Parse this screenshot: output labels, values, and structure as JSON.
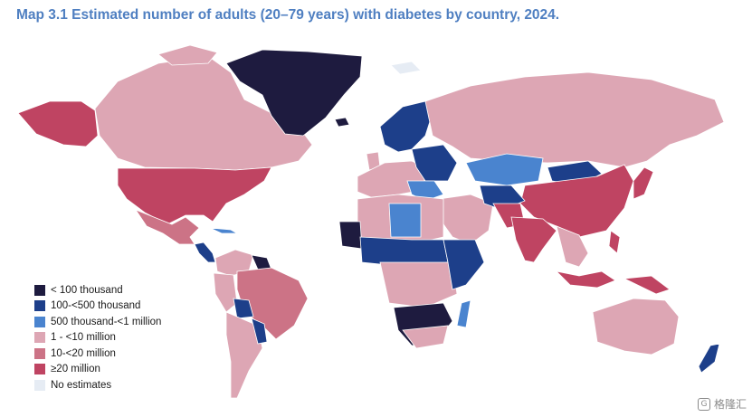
{
  "title": "Map 3.1 Estimated number of adults (20–79 years) with diabetes by country, 2024.",
  "legend": {
    "items": [
      {
        "label": "< 100 thousand",
        "color": "#1e1b3f"
      },
      {
        "label": "100-<500 thousand",
        "color": "#1d3f8a"
      },
      {
        "label": "500 thousand-<1 million",
        "color": "#4a84cf"
      },
      {
        "label": "1 - <10 million",
        "color": "#dda6b4"
      },
      {
        "label": "10-<20 million",
        "color": "#cc7386"
      },
      {
        "label": "≥20 million",
        "color": "#bf4462"
      },
      {
        "label": "No estimates",
        "color": "#e6ecf4"
      }
    ]
  },
  "watermark": {
    "icon_glyph": "G",
    "text": "格隆汇"
  }
}
